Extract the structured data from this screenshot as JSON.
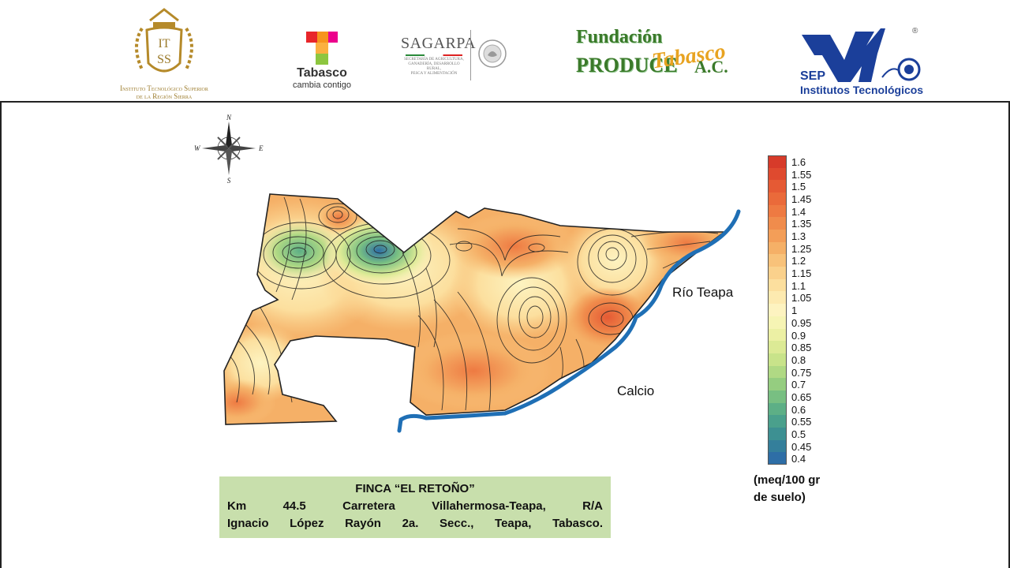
{
  "header": {
    "logos": [
      {
        "name": "itss",
        "caption_line1": "Instituto Tecnológico Superior",
        "caption_line2": "de la Región Sierra"
      },
      {
        "name": "tabasco",
        "word": "Tabasco",
        "tagline": "cambia contigo"
      },
      {
        "name": "sagarpa",
        "word": "SAGARPA",
        "small_line1": "SECRETARÍA DE AGRICULTURA,",
        "small_line2": "GANADERÍA, DESARROLLO RURAL,",
        "small_line3": "PESCA Y ALIMENTACIÓN"
      },
      {
        "name": "fundacion-produce",
        "line1": "Fundación",
        "line2": "PRODUCE",
        "line3": "Tabasco",
        "suffix": "A.C."
      },
      {
        "name": "sep",
        "word": "SEP",
        "sub": "Institutos Tecnológicos",
        "registered": "®"
      }
    ]
  },
  "map": {
    "compass": {
      "n": "N",
      "s": "S",
      "e": "E",
      "w": "W"
    },
    "labels": {
      "river": "Río Teapa",
      "variable": "Calcio"
    },
    "colors": {
      "river": "#1f6fb5",
      "outline": "#222222",
      "ocean": "#ffffff"
    }
  },
  "legend": {
    "ticks": [
      "1.6",
      "1.55",
      "1.5",
      "1.45",
      "1.4",
      "1.35",
      "1.3",
      "1.25",
      "1.2",
      "1.15",
      "1.1",
      "1.05",
      "1",
      "0.95",
      "0.9",
      "0.85",
      "0.8",
      "0.75",
      "0.7",
      "0.65",
      "0.6",
      "0.55",
      "0.5",
      "0.45",
      "0.4"
    ],
    "colors": [
      "#d73b2a",
      "#df4a2f",
      "#e55a34",
      "#ea6a3a",
      "#ee7a42",
      "#f08c4c",
      "#f39e58",
      "#f5b067",
      "#f8c27a",
      "#fad18c",
      "#fcdf9e",
      "#fdeab0",
      "#fdf3c0",
      "#f6f4b4",
      "#ecf0a4",
      "#dcea95",
      "#c8e38a",
      "#b0d984",
      "#95cd80",
      "#78bf82",
      "#5daf86",
      "#4aa08c",
      "#3d9092",
      "#347f9b",
      "#2e6ea6"
    ],
    "units_line1": "(meq/100 gr",
    "units_line2": "de suelo)"
  },
  "info": {
    "line1": "FINCA “EL RETOÑO”",
    "line2": "Km 44.5 Carretera Villahermosa-Teapa, R/A",
    "line3": "Ignacio López Rayón 2a. Secc., Teapa, Tabasco."
  }
}
